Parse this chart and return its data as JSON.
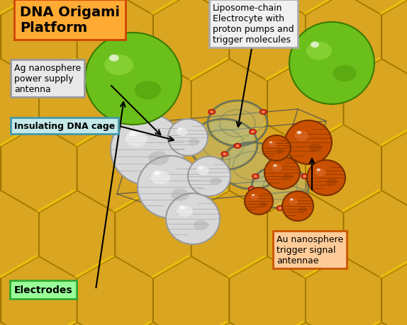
{
  "background_color": "#ffffff",
  "honeycomb_color": "#DAA520",
  "honeycomb_dark": "#9A7200",
  "honeycomb_light": "#FFD700",
  "honeycomb_shadow": "#6B5000",
  "ag_sphere_color": "#D8D8D8",
  "ag_sphere_edge": "#999999",
  "ag_sphere_highlight": "#F5F5F5",
  "ag_sphere_shadow": "#AAAAAA",
  "green_sphere_color": "#6BBF1A",
  "green_sphere_dark": "#3A7A00",
  "green_sphere_light": "#99DD44",
  "orange_sphere_color": "#C85000",
  "orange_sphere_dark": "#7A3000",
  "orange_sphere_light": "#E07030",
  "liposome_color": "#A8C4A8",
  "liposome_edge": "#607060",
  "cage_color": "#505050",
  "labels": {
    "title": "DNA Origami\nPlatform",
    "ag": "Ag nanosphere\npower supply\nantenna",
    "insulating": "Insulating DNA cage",
    "liposome": "Liposome-chain\nElectrocyte with\nproton pumps and\ntrigger molecules",
    "au": "Au nanosphere\ntrigger signal\nantennae",
    "electrodes": "Electrodes"
  },
  "title_box_color": "#FFAA33",
  "title_box_edge": "#CC4400",
  "ag_box_color": "#E8E8E8",
  "ag_box_edge": "#999999",
  "insulating_box_color": "#C5E8E8",
  "insulating_box_edge": "#4499AA",
  "au_box_color": "#FFCC99",
  "au_box_edge": "#CC5500",
  "electrodes_box_color": "#99FF99",
  "electrodes_box_edge": "#33AA33",
  "liposome_box_color": "#F0F0F0",
  "liposome_box_edge": "#AAAAAA"
}
